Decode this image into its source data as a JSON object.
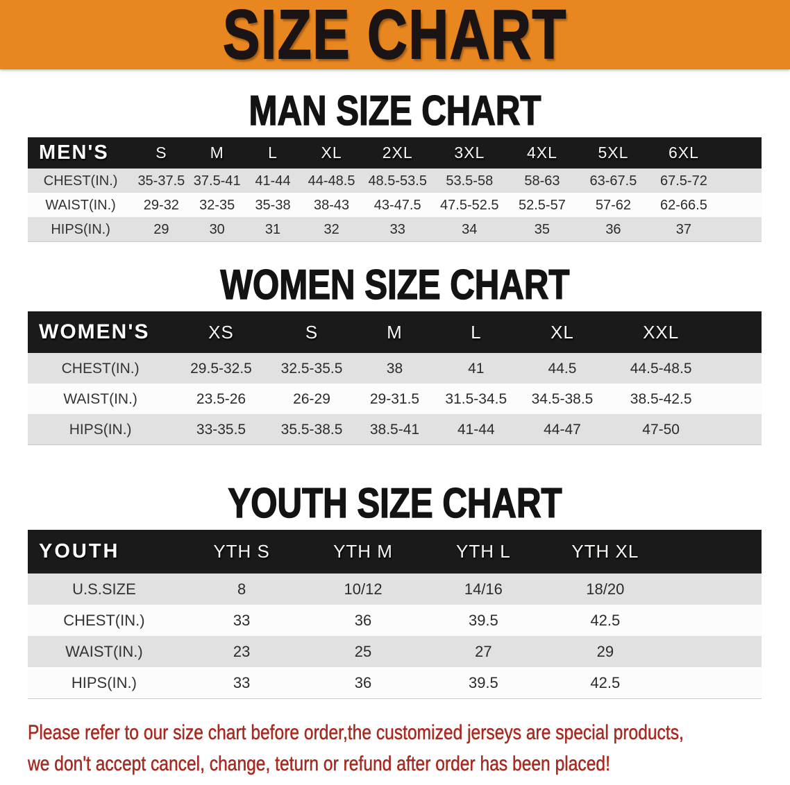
{
  "banner": {
    "title": "SIZE CHART"
  },
  "colors": {
    "banner_bg": "#e8871f",
    "table_header_bg": "#1a1a1a",
    "row_alt_bg": "#e1e1e1",
    "notice_text": "#a62a20"
  },
  "sections": [
    {
      "heading": "MAN SIZE CHART",
      "label": "MEN'S",
      "columns": [
        "S",
        "M",
        "L",
        "XL",
        "2XL",
        "3XL",
        "4XL",
        "5XL",
        "6XL"
      ],
      "rows": [
        {
          "label": "CHEST(IN.)",
          "values": [
            "35-37.5",
            "37.5-41",
            "41-44",
            "44-48.5",
            "48.5-53.5",
            "53.5-58",
            "58-63",
            "63-67.5",
            "67.5-72"
          ]
        },
        {
          "label": "WAIST(IN.)",
          "values": [
            "29-32",
            "32-35",
            "35-38",
            "38-43",
            "43-47.5",
            "47.5-52.5",
            "52.5-57",
            "57-62",
            "62-66.5"
          ]
        },
        {
          "label": "HIPS(IN.)",
          "values": [
            "29",
            "30",
            "31",
            "32",
            "33",
            "34",
            "35",
            "36",
            "37"
          ]
        }
      ]
    },
    {
      "heading": "WOMEN SIZE CHART",
      "label": "WOMEN'S",
      "columns": [
        "XS",
        "S",
        "M",
        "L",
        "XL",
        "XXL"
      ],
      "rows": [
        {
          "label": "CHEST(IN.)",
          "values": [
            "29.5-32.5",
            "32.5-35.5",
            "38",
            "41",
            "44.5",
            "44.5-48.5"
          ]
        },
        {
          "label": "WAIST(IN.)",
          "values": [
            "23.5-26",
            "26-29",
            "29-31.5",
            "31.5-34.5",
            "34.5-38.5",
            "38.5-42.5"
          ]
        },
        {
          "label": "HIPS(IN.)",
          "values": [
            "33-35.5",
            "35.5-38.5",
            "38.5-41",
            "41-44",
            "44-47",
            "47-50"
          ]
        }
      ]
    },
    {
      "heading": "YOUTH SIZE CHART",
      "label": "YOUTH",
      "columns": [
        "YTH S",
        "YTH M",
        "YTH L",
        "YTH XL"
      ],
      "rows": [
        {
          "label": "U.S.SIZE",
          "values": [
            "8",
            "10/12",
            "14/16",
            "18/20"
          ]
        },
        {
          "label": "CHEST(IN.)",
          "values": [
            "33",
            "36",
            "39.5",
            "42.5"
          ]
        },
        {
          "label": "WAIST(IN.)",
          "values": [
            "23",
            "25",
            "27",
            "29"
          ]
        },
        {
          "label": "HIPS(IN.)",
          "values": [
            "33",
            "36",
            "39.5",
            "42.5"
          ]
        }
      ]
    }
  ],
  "footer": {
    "line1": "Please refer to our size chart before order,the customized jerseys are special products,",
    "line2": "we don't accept cancel, change, teturn or refund after order has been placed!"
  }
}
